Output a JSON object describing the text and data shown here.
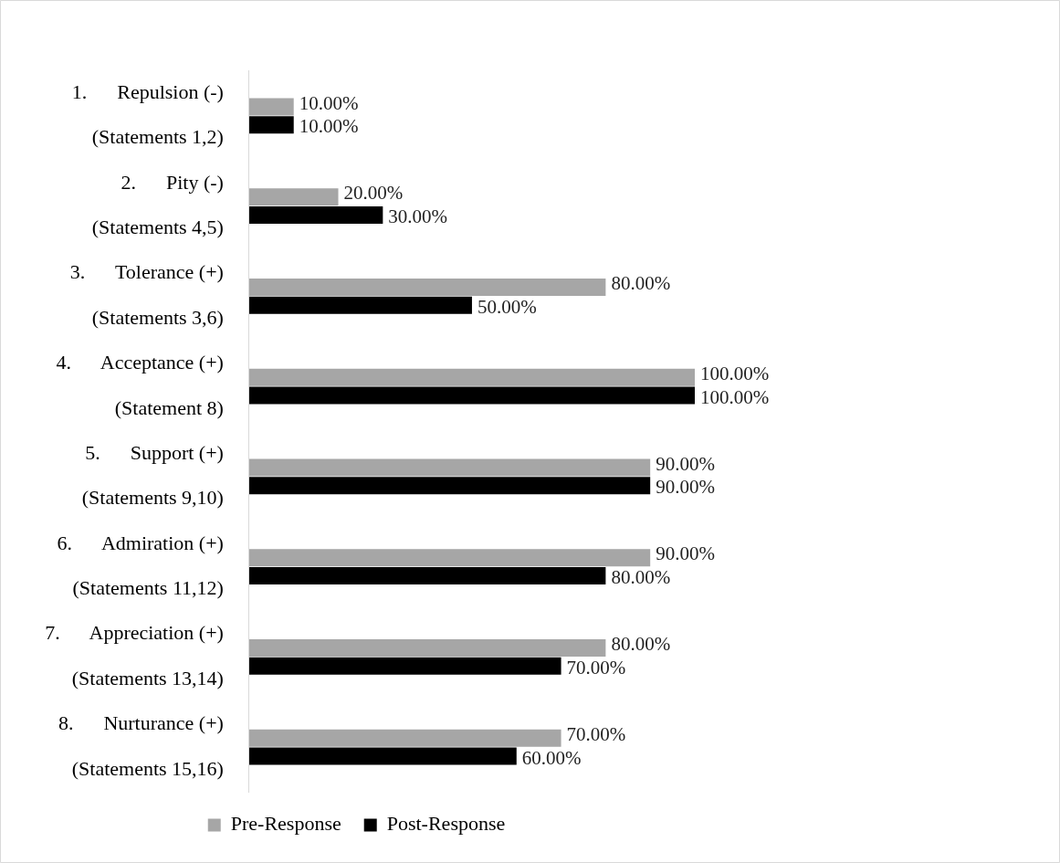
{
  "chart_data": {
    "type": "bar",
    "orientation": "horizontal",
    "categories": [
      "1.      Repulsion (-)\n(Statements 1,2)",
      "2.      Pity (-)\n(Statements 4,5)",
      "3.      Tolerance (+)\n(Statements 3,6)",
      "4.      Acceptance (+)\n(Statement 8)",
      "5.      Support (+)\n(Statements 9,10)",
      "6.      Admiration (+)\n(Statements 11,12)",
      "7.      Appreciation (+)\n(Statements 13,14)",
      "8.      Nurturance (+)\n(Statements 15,16)"
    ],
    "series": [
      {
        "name": "Pre-Response",
        "color": "#a6a6a6",
        "values": [
          10,
          20,
          80,
          100,
          90,
          90,
          80,
          70
        ],
        "value_labels": [
          "10.00%",
          "20.00%",
          "80.00%",
          "100.00%",
          "90.00%",
          "90.00%",
          "80.00%",
          "70.00%"
        ]
      },
      {
        "name": "Post-Response",
        "color": "#000000",
        "values": [
          10,
          30,
          50,
          100,
          90,
          80,
          70,
          60
        ],
        "value_labels": [
          "10.00%",
          "30.00%",
          "50.00%",
          "100.00%",
          "90.00%",
          "80.00%",
          "70.00%",
          "60.00%"
        ]
      }
    ],
    "legend": "bottom",
    "grid": false
  }
}
